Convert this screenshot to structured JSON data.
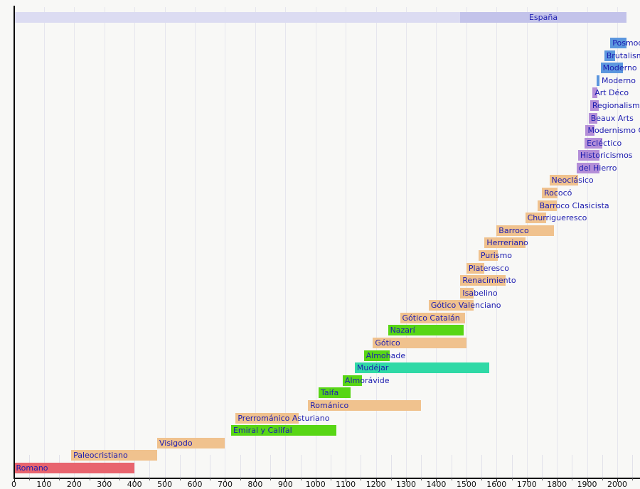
{
  "colors": {
    "red": "#e8646e",
    "tan": "#f0c28e",
    "green": "#58d615",
    "teal": "#2fd9a6",
    "purple": "#b48fd8",
    "blue": "#5c97de",
    "espana_light": "#dcdcf2",
    "espana_dark": "#c3c3ea",
    "label_text": "#1c1cb0",
    "axis": "#000000",
    "gridline": "#e6e6ee"
  },
  "chart_data": {
    "type": "bar",
    "subtype": "timeline-gantt",
    "title": "",
    "xlabel": "",
    "ylabel": "",
    "x_axis": {
      "min": 0,
      "max": 2000,
      "tick_step": 100,
      "tick_labels": [
        "0",
        "100",
        "200",
        "300",
        "400",
        "500",
        "600",
        "700",
        "800",
        "900",
        "1000",
        "1100",
        "1200",
        "1300",
        "1400",
        "1500",
        "1600",
        "1700",
        "1800",
        "1900",
        "2000"
      ],
      "grid": true
    },
    "country_band": {
      "label": "España",
      "light_segment": {
        "start": 0,
        "end": 2030
      },
      "dark_segment": {
        "start": 1480,
        "end": 2030
      }
    },
    "styles": [
      {
        "label": "Posmoderno",
        "start": 1977,
        "end": 2030,
        "color": "blue",
        "label_side": "in"
      },
      {
        "label": "Brutalismo",
        "start": 1957,
        "end": 1992,
        "color": "blue",
        "label_side": "in"
      },
      {
        "label": "Moderno Internacional",
        "start": 1945,
        "end": 2020,
        "color": "blue",
        "label_side": "in"
      },
      {
        "label": "Moderno",
        "start": 1932,
        "end": 1941,
        "color": "blue",
        "label_side": "right"
      },
      {
        "label": "Art Déco",
        "start": 1918,
        "end": 1933,
        "color": "purple",
        "label_side": "in"
      },
      {
        "label": "Regionalismos",
        "start": 1910,
        "end": 1938,
        "color": "purple",
        "label_side": "in"
      },
      {
        "label": "Beaux Arts",
        "start": 1905,
        "end": 1935,
        "color": "purple",
        "label_side": "in"
      },
      {
        "label": "Modernismo Catalán",
        "start": 1895,
        "end": 1925,
        "color": "purple",
        "label_side": "in"
      },
      {
        "label": "Ecléctico",
        "start": 1892,
        "end": 1950,
        "color": "purple",
        "label_side": "in"
      },
      {
        "label": "Historicismos",
        "start": 1870,
        "end": 1942,
        "color": "purple",
        "label_side": "in"
      },
      {
        "label": "del Hierro",
        "start": 1865,
        "end": 1940,
        "color": "purple",
        "label_side": "in"
      },
      {
        "label": "Neoclásico",
        "start": 1775,
        "end": 1870,
        "color": "tan",
        "label_side": "in"
      },
      {
        "label": "Rococó",
        "start": 1750,
        "end": 1802,
        "color": "tan",
        "label_side": "in"
      },
      {
        "label": "Barroco Clasicista",
        "start": 1735,
        "end": 1800,
        "color": "tan",
        "label_side": "in"
      },
      {
        "label": "Churrigueresco",
        "start": 1695,
        "end": 1765,
        "color": "tan",
        "label_side": "in"
      },
      {
        "label": "Barroco",
        "start": 1600,
        "end": 1790,
        "color": "tan",
        "label_side": "in"
      },
      {
        "label": "Herreriano",
        "start": 1560,
        "end": 1695,
        "color": "tan",
        "label_side": "in"
      },
      {
        "label": "Purismo",
        "start": 1540,
        "end": 1605,
        "color": "tan",
        "label_side": "in"
      },
      {
        "label": "Plateresco",
        "start": 1500,
        "end": 1560,
        "color": "tan",
        "label_side": "in"
      },
      {
        "label": "Renacimiento",
        "start": 1480,
        "end": 1630,
        "color": "tan",
        "label_side": "in"
      },
      {
        "label": "Isabelino",
        "start": 1480,
        "end": 1525,
        "color": "tan",
        "label_side": "in"
      },
      {
        "label": "Gótico Valenciano",
        "start": 1375,
        "end": 1525,
        "color": "tan",
        "label_side": "in"
      },
      {
        "label": "Gótico Catalán",
        "start": 1280,
        "end": 1495,
        "color": "tan",
        "label_side": "in"
      },
      {
        "label": "Nazarí",
        "start": 1240,
        "end": 1492,
        "color": "green",
        "label_side": "in"
      },
      {
        "label": "Gótico",
        "start": 1190,
        "end": 1500,
        "color": "tan",
        "label_side": "in"
      },
      {
        "label": "Almohade",
        "start": 1160,
        "end": 1245,
        "color": "green",
        "label_side": "in"
      },
      {
        "label": "Mudéjar",
        "start": 1130,
        "end": 1575,
        "color": "teal",
        "label_side": "in"
      },
      {
        "label": "Almorávide",
        "start": 1090,
        "end": 1155,
        "color": "green",
        "label_side": "in"
      },
      {
        "label": "Taifa",
        "start": 1010,
        "end": 1115,
        "color": "green",
        "label_side": "in"
      },
      {
        "label": "Románico",
        "start": 975,
        "end": 1350,
        "color": "tan",
        "label_side": "in"
      },
      {
        "label": "Prerrománico Asturiano",
        "start": 735,
        "end": 945,
        "color": "tan",
        "label_side": "in"
      },
      {
        "label": "Emiral y Califal",
        "start": 720,
        "end": 1070,
        "color": "green",
        "label_side": "in"
      },
      {
        "label": "Visigodo",
        "start": 475,
        "end": 700,
        "color": "tan",
        "label_side": "in"
      },
      {
        "label": "Paleocristiano",
        "start": 190,
        "end": 475,
        "color": "tan",
        "label_side": "in"
      },
      {
        "label": "Romano",
        "start": 0,
        "end": 400,
        "color": "red",
        "label_side": "in"
      }
    ]
  }
}
